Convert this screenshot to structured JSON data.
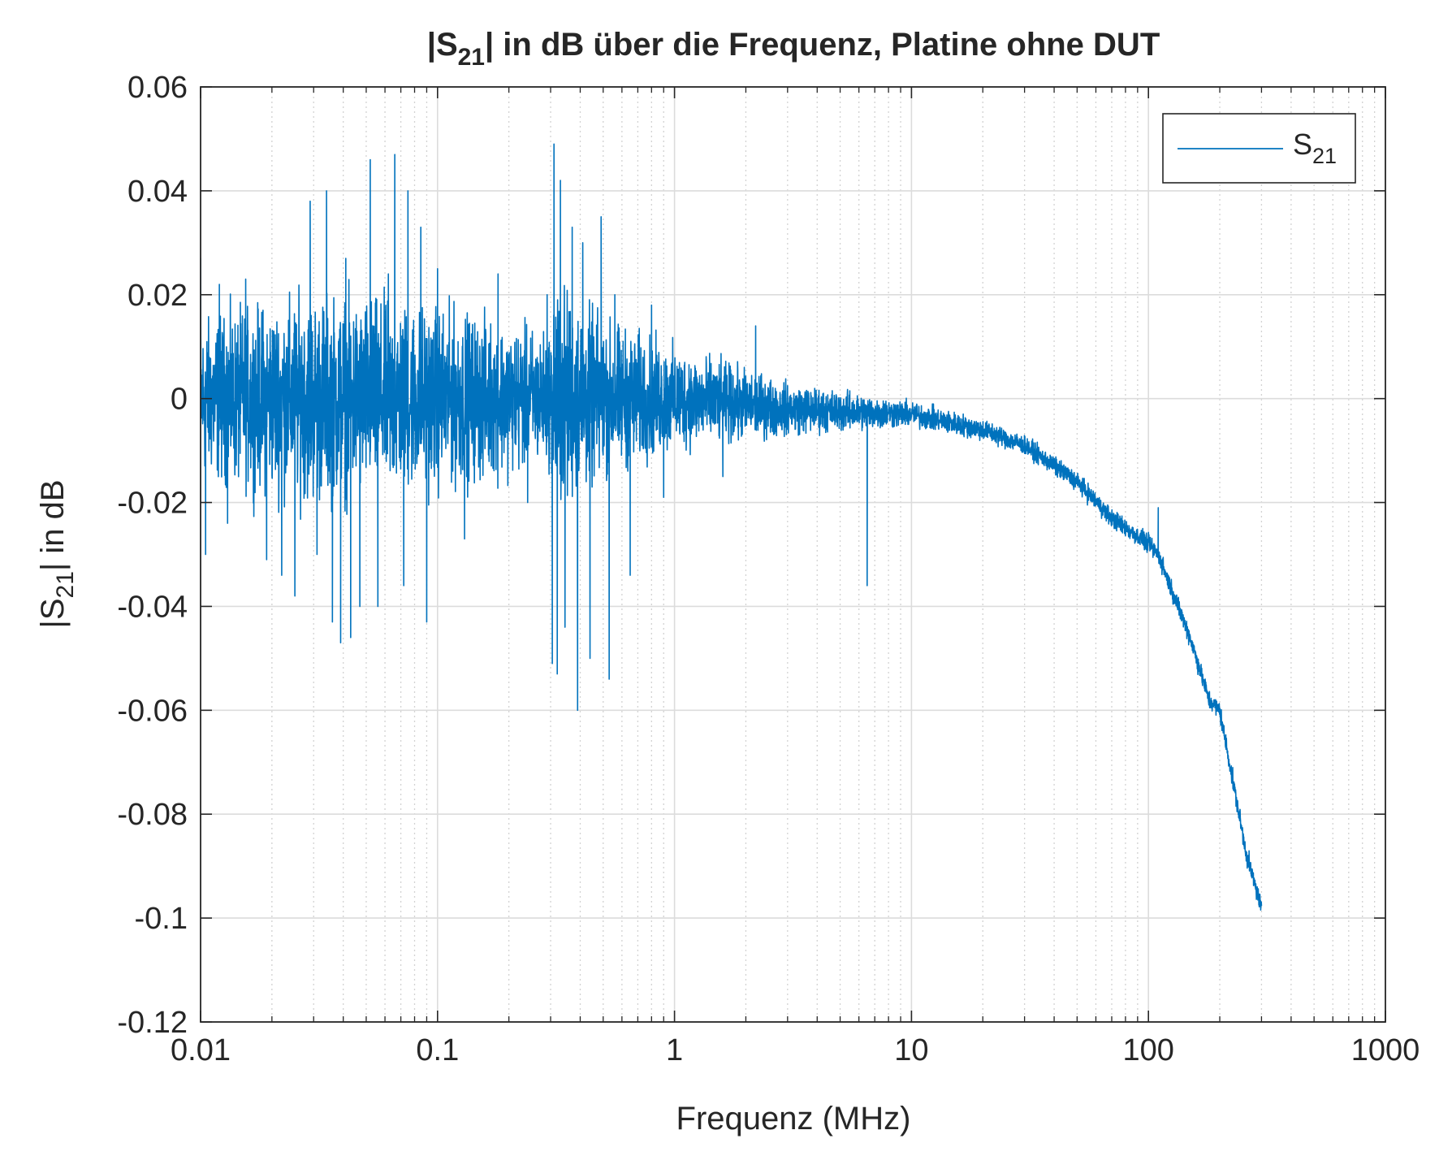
{
  "chart_data": {
    "type": "line",
    "title": {
      "pre": "|S",
      "sub": "21",
      "post": "| in dB über die Frequenz, Platine ohne DUT"
    },
    "xlabel": "Frequenz (MHz)",
    "ylabel": {
      "pre": "|S",
      "sub": "21",
      "post": "| in dB"
    },
    "xscale": "log",
    "xlim": [
      0.01,
      1000
    ],
    "ylim": [
      -0.12,
      0.06
    ],
    "xticks": [
      0.01,
      0.1,
      1,
      10,
      100,
      1000
    ],
    "xtick_labels": [
      "0.01",
      "0.1",
      "1",
      "10",
      "100",
      "1000"
    ],
    "yticks": [
      0.06,
      0.04,
      0.02,
      0,
      -0.02,
      -0.04,
      -0.06,
      -0.08,
      -0.1,
      -0.12
    ],
    "ytick_labels": [
      "0.06",
      "0.04",
      "0.02",
      "0",
      "-0.02",
      "-0.04",
      "-0.06",
      "-0.08",
      "-0.1",
      "-0.12"
    ],
    "grid": true,
    "minor_grid": true,
    "legend": {
      "position": "top-right",
      "entries": [
        {
          "pre": "S",
          "sub": "21"
        }
      ]
    },
    "series": [
      {
        "legend_index": 0,
        "color": "#0072BD",
        "trend": {
          "x": [
            0.01,
            0.03,
            0.1,
            0.3,
            1,
            3,
            10,
            20,
            30,
            50,
            70,
            100,
            110,
            150,
            180,
            200,
            230,
            260,
            300
          ],
          "y": [
            0.0,
            0.0,
            0.0,
            0.0,
            0.0,
            -0.002,
            -0.003,
            -0.006,
            -0.009,
            -0.016,
            -0.023,
            -0.028,
            -0.03,
            -0.046,
            -0.058,
            -0.06,
            -0.075,
            -0.088,
            -0.098
          ]
        },
        "noise_amplitude": {
          "x": [
            0.01,
            0.03,
            0.1,
            0.3,
            0.31,
            0.5,
            1,
            3,
            10,
            30,
            300
          ],
          "y": [
            0.012,
            0.016,
            0.014,
            0.01,
            0.018,
            0.012,
            0.008,
            0.004,
            0.002,
            0.0015,
            0.0015
          ]
        },
        "points": [
          [
            0.01,
            0.027
          ],
          [
            0.0105,
            -0.03
          ],
          [
            0.012,
            0.022
          ],
          [
            0.013,
            -0.024
          ],
          [
            0.0155,
            0.023
          ],
          [
            0.019,
            -0.031
          ],
          [
            0.022,
            -0.034
          ],
          [
            0.025,
            -0.038
          ],
          [
            0.029,
            0.038
          ],
          [
            0.031,
            -0.03
          ],
          [
            0.034,
            0.04
          ],
          [
            0.036,
            -0.043
          ],
          [
            0.039,
            -0.047
          ],
          [
            0.041,
            0.027
          ],
          [
            0.043,
            -0.046
          ],
          [
            0.047,
            -0.04
          ],
          [
            0.052,
            0.046
          ],
          [
            0.056,
            -0.04
          ],
          [
            0.062,
            0.024
          ],
          [
            0.066,
            0.047
          ],
          [
            0.072,
            -0.036
          ],
          [
            0.075,
            0.04
          ],
          [
            0.085,
            0.033
          ],
          [
            0.09,
            -0.043
          ],
          [
            0.1,
            0.025
          ],
          [
            0.13,
            -0.027
          ],
          [
            0.18,
            0.024
          ],
          [
            0.24,
            -0.02
          ],
          [
            0.29,
            0.02
          ],
          [
            0.305,
            -0.051
          ],
          [
            0.31,
            0.049
          ],
          [
            0.32,
            -0.053
          ],
          [
            0.33,
            0.042
          ],
          [
            0.345,
            -0.044
          ],
          [
            0.37,
            0.033
          ],
          [
            0.39,
            -0.06
          ],
          [
            0.41,
            0.03
          ],
          [
            0.44,
            -0.05
          ],
          [
            0.49,
            0.035
          ],
          [
            0.53,
            -0.054
          ],
          [
            0.56,
            0.02
          ],
          [
            0.65,
            -0.034
          ],
          [
            0.8,
            0.018
          ],
          [
            0.9,
            -0.019
          ],
          [
            1.6,
            -0.015
          ],
          [
            2.2,
            0.014
          ],
          [
            6.5,
            -0.036
          ],
          [
            110,
            -0.021
          ]
        ]
      }
    ]
  }
}
